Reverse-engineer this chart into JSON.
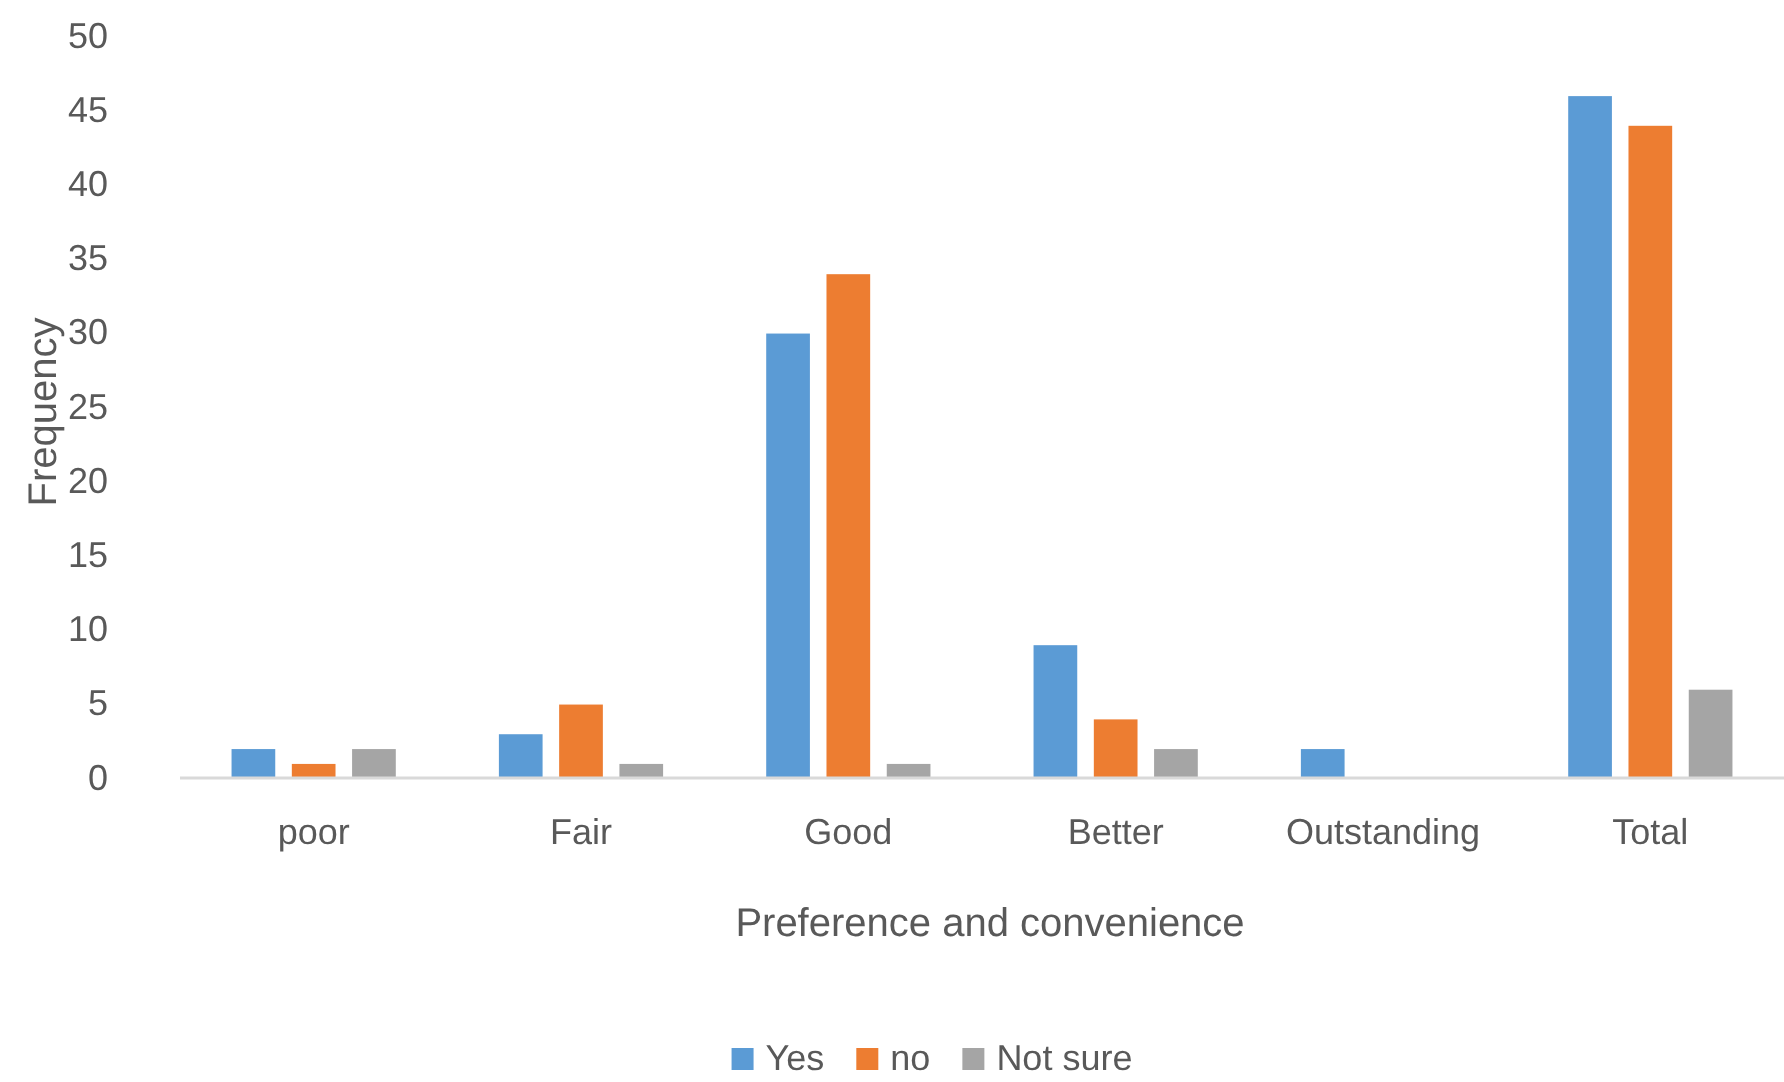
{
  "chart_data": {
    "type": "bar",
    "xlabel": "Preference and convenience",
    "ylabel": "Frequency",
    "categories": [
      "poor",
      "Fair",
      "Good",
      "Better",
      "Outstanding",
      "Total"
    ],
    "series": [
      {
        "name": "Yes",
        "color": "#5b9bd5",
        "values": [
          2,
          3,
          30,
          9,
          2,
          46
        ]
      },
      {
        "name": "no",
        "color": "#ed7d31",
        "values": [
          1,
          5,
          34,
          4,
          0,
          44
        ]
      },
      {
        "name": "Not sure",
        "color": "#a5a5a5",
        "values": [
          2,
          1,
          1,
          2,
          0,
          6
        ]
      }
    ],
    "ylim": [
      0,
      50
    ],
    "yticks": [
      0,
      5,
      10,
      15,
      20,
      25,
      30,
      35,
      40,
      45,
      50
    ],
    "grid": false,
    "legend": "bottom"
  }
}
